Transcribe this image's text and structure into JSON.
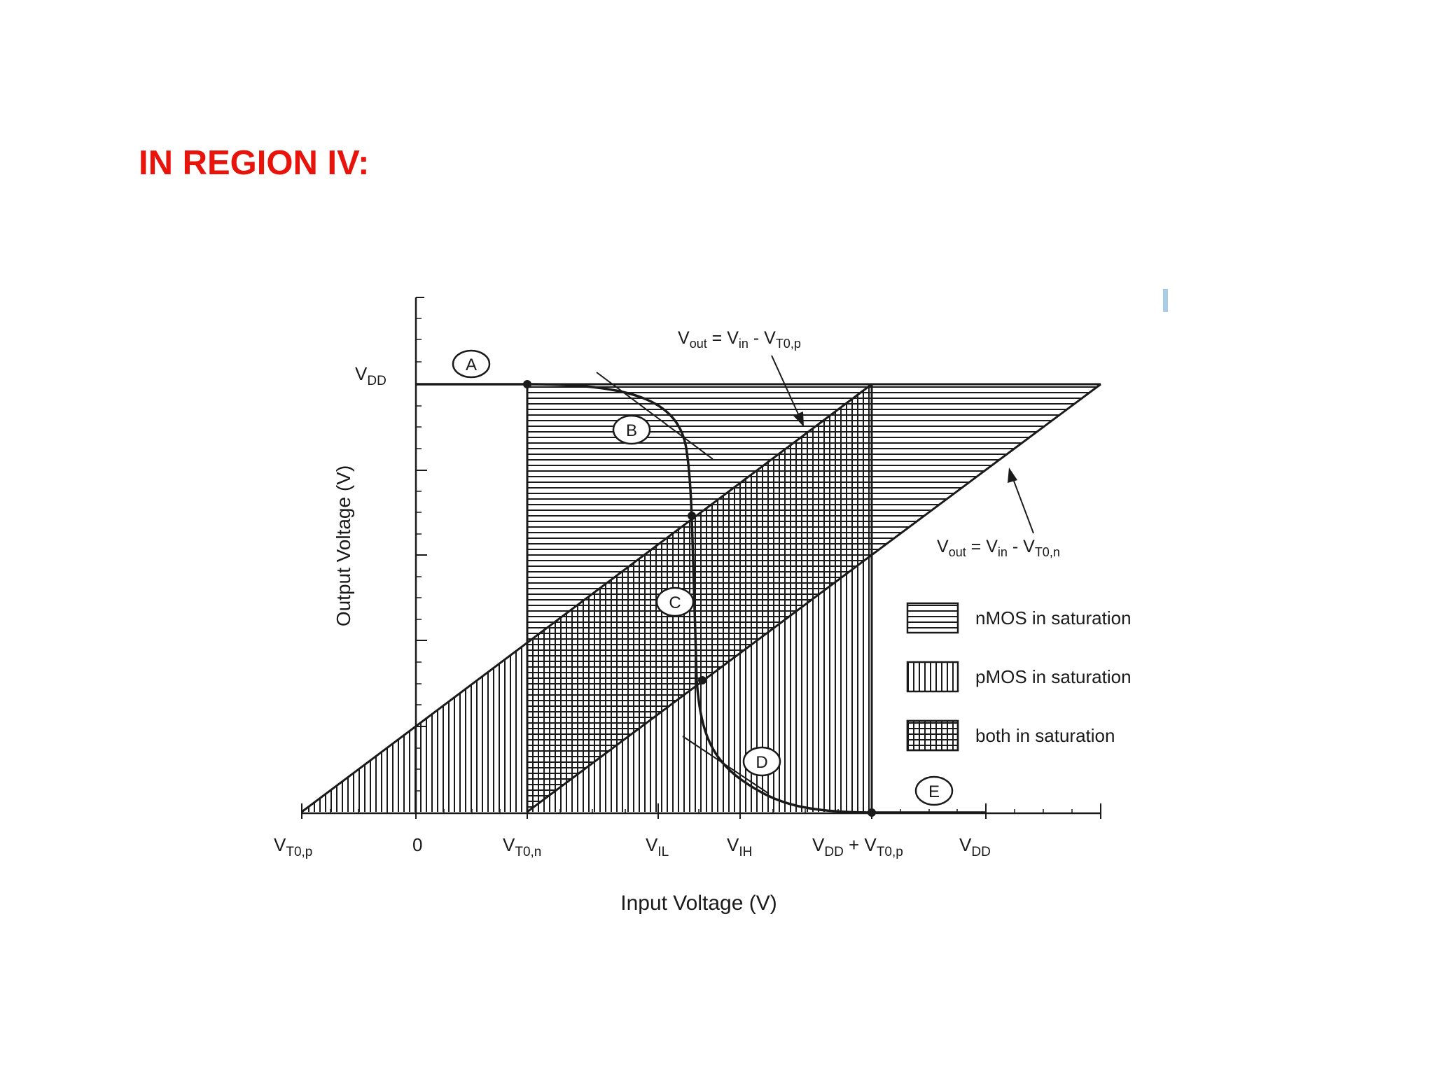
{
  "slide": {
    "title": "IN REGION IV:",
    "title_color": "#e8140c",
    "accent_bar_color": "#a9cde6"
  },
  "diagram": {
    "y_axis_label": "Output Voltage  (V)",
    "x_axis_label": "Input Voltage  (V)",
    "y_axis_vdd": {
      "main": "V",
      "sub": "DD"
    },
    "x_ticks": [
      {
        "main": "V",
        "sub": "T0,p"
      },
      {
        "main": "0",
        "sub": ""
      },
      {
        "main": "V",
        "sub": "T0,n"
      },
      {
        "main": "V",
        "sub": "IL"
      },
      {
        "main": "V",
        "sub": "IH"
      },
      {
        "main": "V",
        "sub": "DD",
        "main2": " + V",
        "sub2": "T0,p"
      },
      {
        "main": "V",
        "sub": "DD"
      }
    ],
    "line_labels": {
      "pmos_boundary": {
        "v": "V",
        "out": "out",
        "eq": " = V",
        "in": "in",
        "minus": " - V",
        "t": "T0,p"
      },
      "nmos_boundary": {
        "v": "V",
        "out": "out",
        "eq": " = V",
        "in": "in",
        "minus": " - V",
        "t": "T0,n"
      }
    },
    "region_markers": [
      "A",
      "B",
      "C",
      "D",
      "E"
    ],
    "legend": [
      {
        "pattern": "horizontal-hatch",
        "label": "nMOS in saturation"
      },
      {
        "pattern": "vertical-hatch",
        "label": "pMOS in saturation"
      },
      {
        "pattern": "cross-hatch",
        "label": "both in saturation"
      }
    ],
    "colors": {
      "ink": "#1a1a1a",
      "background": "#ffffff"
    }
  }
}
